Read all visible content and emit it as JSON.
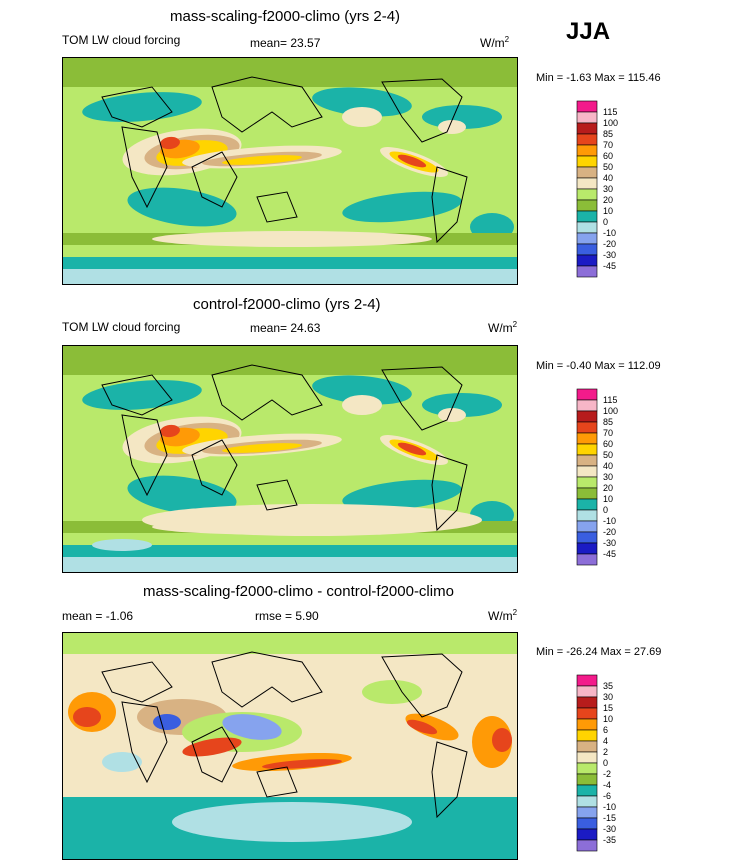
{
  "season": "JJA",
  "chart_data": [
    {
      "type": "heatmap",
      "title": "mass-scaling-f2000-climo (yrs 2-4)",
      "variable": "TOM LW cloud forcing",
      "stat_label": "mean=",
      "mean": "23.57",
      "units": "W/m",
      "units_exp": "2",
      "min_label": "Min =",
      "min": "-1.63",
      "max_label": "Max =",
      "max": "115.46",
      "colorbar": {
        "labels": [
          "115",
          "100",
          "85",
          "70",
          "60",
          "50",
          "40",
          "30",
          "20",
          "10",
          "0",
          "-10",
          "-20",
          "-30",
          "-45"
        ],
        "colors": [
          "#f31b8b",
          "#f7b6c7",
          "#b71c1c",
          "#e6451c",
          "#ff9a06",
          "#ffd400",
          "#d8b283",
          "#f4e7c4",
          "#b9e96b",
          "#8bbd38",
          "#1bb3a8",
          "#b0e0e4",
          "#86a3ee",
          "#3a5ee0",
          "#1b1bc4",
          "#8c6ed8"
        ]
      }
    },
    {
      "type": "heatmap",
      "title": "control-f2000-climo (yrs 2-4)",
      "variable": "TOM LW cloud forcing",
      "stat_label": "mean=",
      "mean": "24.63",
      "units": "W/m",
      "units_exp": "2",
      "min_label": "Min =",
      "min": "-0.40",
      "max_label": "Max =",
      "max": "112.09",
      "colorbar": {
        "labels": [
          "115",
          "100",
          "85",
          "70",
          "60",
          "50",
          "40",
          "30",
          "20",
          "10",
          "0",
          "-10",
          "-20",
          "-30",
          "-45"
        ],
        "colors": [
          "#f31b8b",
          "#f7b6c7",
          "#b71c1c",
          "#e6451c",
          "#ff9a06",
          "#ffd400",
          "#d8b283",
          "#f4e7c4",
          "#b9e96b",
          "#8bbd38",
          "#1bb3a8",
          "#b0e0e4",
          "#86a3ee",
          "#3a5ee0",
          "#1b1bc4",
          "#8c6ed8"
        ]
      }
    },
    {
      "type": "heatmap",
      "title": "mass-scaling-f2000-climo - control-f2000-climo",
      "mean_label": "mean =",
      "mean": "-1.06",
      "rmse_label": "rmse =",
      "rmse": "5.90",
      "units": "W/m",
      "units_exp": "2",
      "min_label": "Min =",
      "min": "-26.24",
      "max_label": "Max =",
      "max": "27.69",
      "colorbar": {
        "labels": [
          "35",
          "30",
          "15",
          "10",
          "6",
          "4",
          "2",
          "0",
          "-2",
          "-4",
          "-6",
          "-10",
          "-15",
          "-30",
          "-35"
        ],
        "colors": [
          "#f31b8b",
          "#f7b6c7",
          "#b71c1c",
          "#e6451c",
          "#ff9a06",
          "#ffd400",
          "#d8b283",
          "#f4e7c4",
          "#b9e96b",
          "#8bbd38",
          "#1bb3a8",
          "#b0e0e4",
          "#86a3ee",
          "#3a5ee0",
          "#1b1bc4",
          "#8c6ed8"
        ]
      }
    }
  ]
}
